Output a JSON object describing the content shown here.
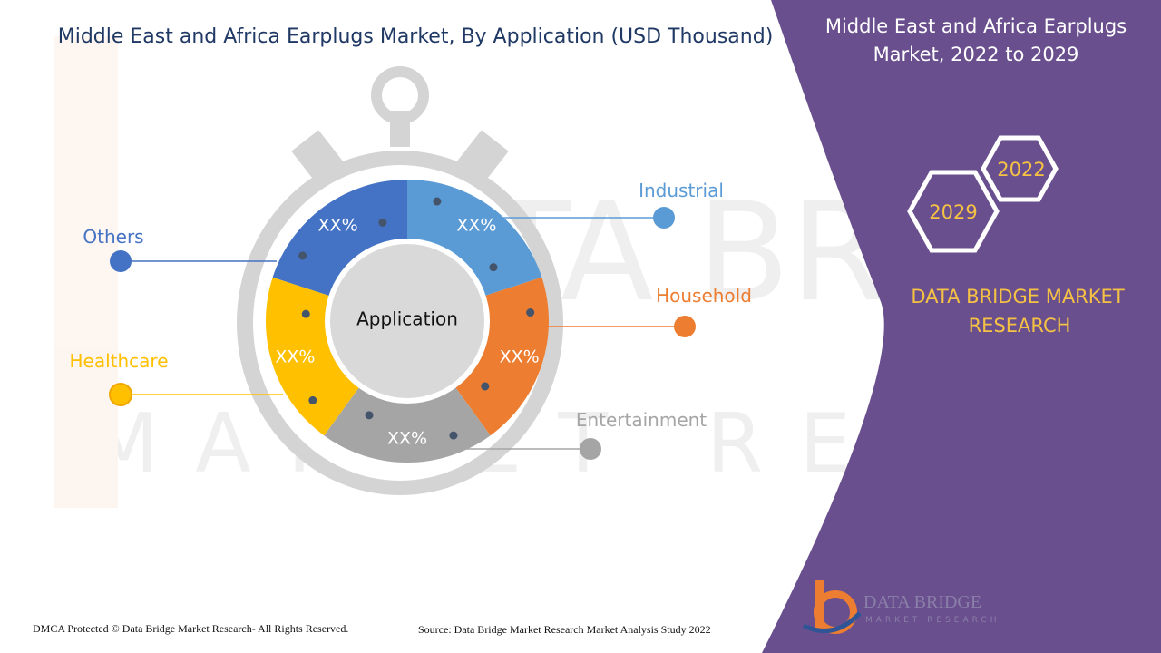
{
  "header": {
    "title": "Middle East and Africa Earplugs Market, By Application (USD Thousand)"
  },
  "side_panel": {
    "title_line1": "Middle East and Africa Earplugs",
    "title_line2": "Market, 2022 to 2029",
    "year_start": "2022",
    "year_end": "2029",
    "brand_line1": "DATA BRIDGE MARKET",
    "brand_line2": "RESEARCH"
  },
  "logo": {
    "name_line1": "DATA BRIDGE",
    "name_line2": "MARKET RESEARCH"
  },
  "footer": {
    "copyright": "DMCA Protected © Data Bridge Market Research- All Rights Reserved.",
    "source": "Source: Data Bridge Market Research Market Analysis Study 2022"
  },
  "colors": {
    "panel": "#6a4f8e",
    "title": "#1f3864",
    "accent_gold": "#f5c243",
    "Industrial": "#5b9bd5",
    "Household": "#ed7d31",
    "Entertainment": "#a5a5a5",
    "Healthcare": "#ffc000",
    "Others": "#4472c4"
  },
  "chart_data": {
    "type": "pie",
    "title": "Middle East and Africa Earplugs Market, By Application (USD Thousand)",
    "center_label": "Application",
    "categories": [
      "Industrial",
      "Household",
      "Entertainment",
      "Healthcare",
      "Others"
    ],
    "value_labels": [
      "XX%",
      "XX%",
      "XX%",
      "XX%",
      "XX%"
    ],
    "legend_placement": "callouts"
  }
}
